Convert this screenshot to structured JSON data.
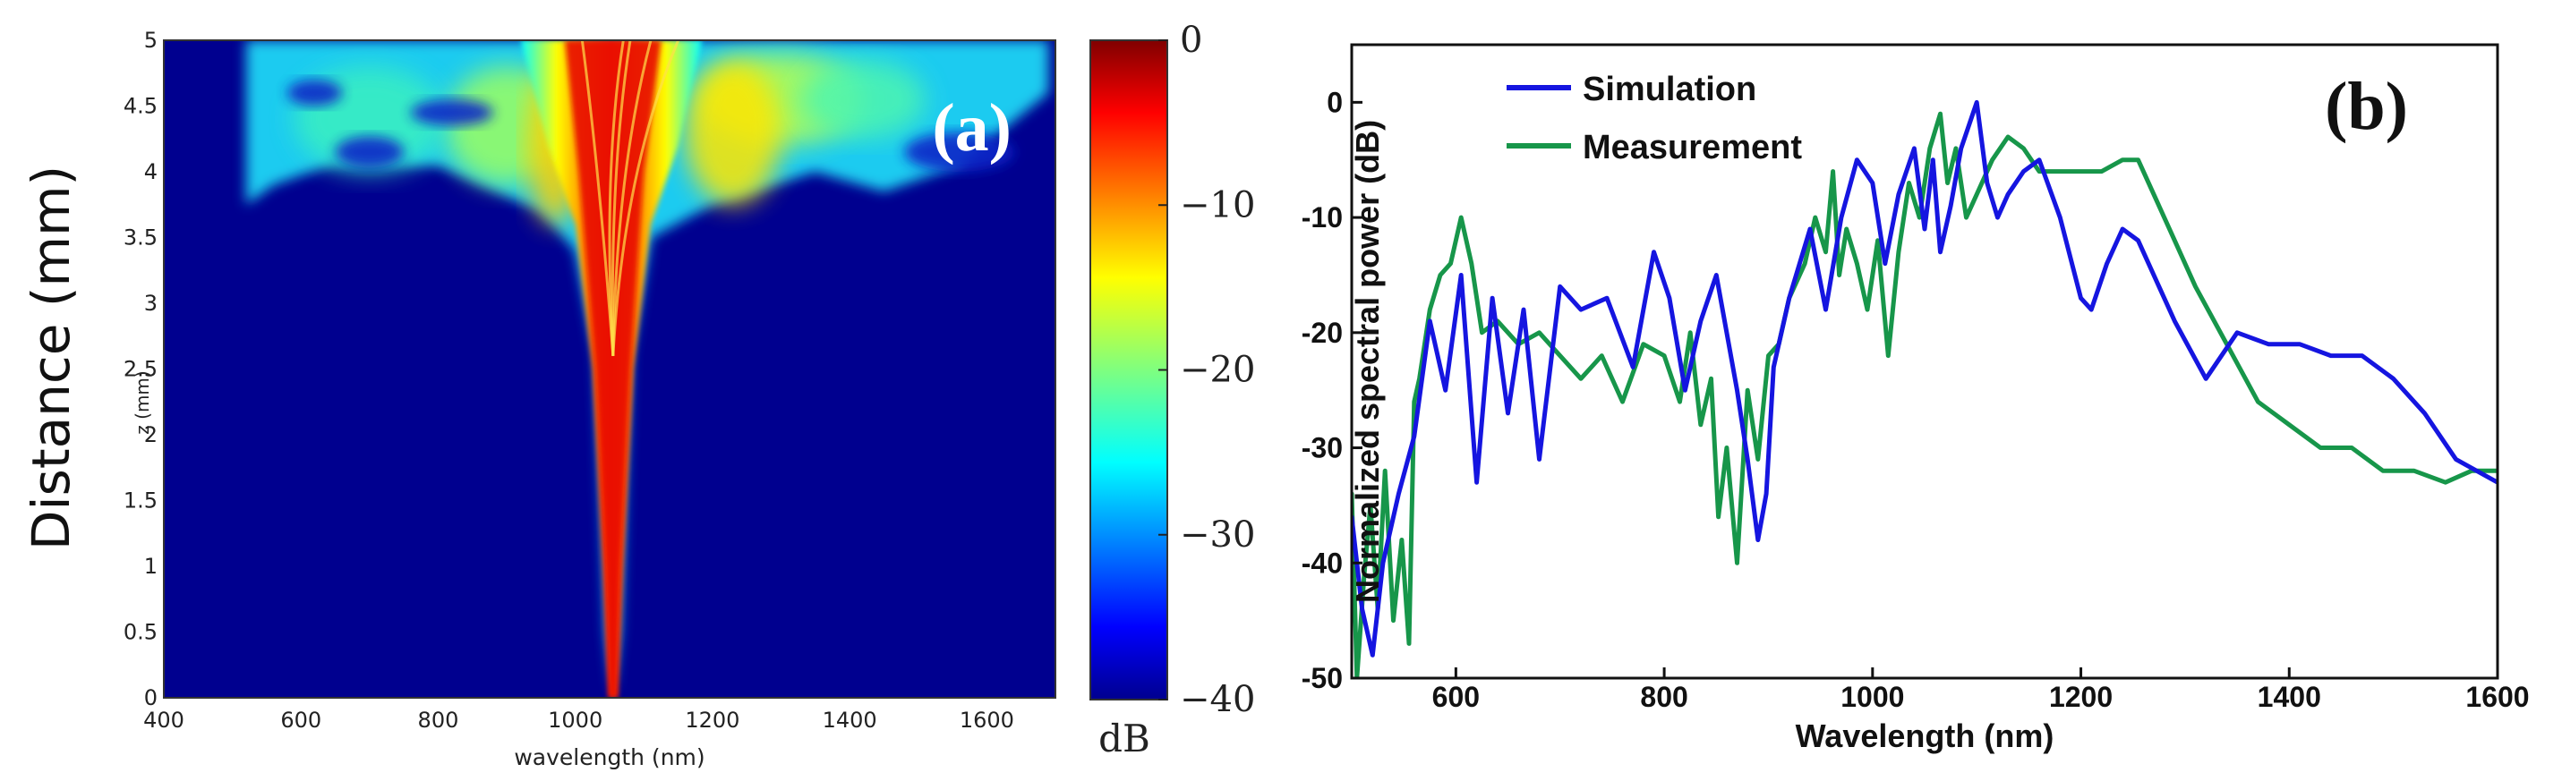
{
  "chart_data": [
    {
      "type": "heatmap",
      "panel_label": "(a)",
      "xlabel": "wavelength (nm)",
      "ylabel": "Distance (mm)",
      "ylabel_small": "z (mm)",
      "xlim": [
        400,
        1700
      ],
      "ylim": [
        0,
        5
      ],
      "x_ticks": [
        "400",
        "600",
        "800",
        "1000",
        "1200",
        "1400",
        "1600"
      ],
      "y_ticks": [
        "0",
        "0.5",
        "1",
        "1.5",
        "2",
        "2.5",
        "3",
        "3.5",
        "4",
        "4.5",
        "5"
      ],
      "colorbar": {
        "label": "dB",
        "range": [
          -40,
          0
        ],
        "ticks": [
          "0",
          "−10",
          "−20",
          "−30",
          "−40"
        ],
        "colormap": "jet"
      },
      "pump_center_nm": 1055
    },
    {
      "type": "line",
      "panel_label": "(b)",
      "xlabel": "Wavelength (nm)",
      "ylabel": "Normalized spectral power (dB)",
      "xlim": [
        500,
        1600
      ],
      "ylim": [
        -50,
        5
      ],
      "x_ticks": [
        "600",
        "800",
        "1000",
        "1200",
        "1400",
        "1600"
      ],
      "y_ticks": [
        "0",
        "-10",
        "-20",
        "-30",
        "-40",
        "-50"
      ],
      "series": [
        {
          "name": "Simulation",
          "color": "#1515e0",
          "x": [
            500,
            510,
            520,
            530,
            545,
            560,
            575,
            590,
            605,
            620,
            635,
            650,
            665,
            680,
            700,
            720,
            745,
            770,
            790,
            805,
            820,
            835,
            850,
            870,
            880,
            890,
            898,
            905,
            920,
            940,
            955,
            970,
            985,
            1000,
            1012,
            1025,
            1040,
            1050,
            1058,
            1065,
            1075,
            1085,
            1100,
            1110,
            1120,
            1130,
            1145,
            1160,
            1180,
            1200,
            1210,
            1225,
            1240,
            1255,
            1270,
            1290,
            1320,
            1350,
            1380,
            1410,
            1440,
            1470,
            1500,
            1530,
            1560,
            1600
          ],
          "y": [
            -36,
            -44,
            -48,
            -40,
            -34,
            -29,
            -19,
            -25,
            -15,
            -33,
            -17,
            -27,
            -18,
            -31,
            -16,
            -18,
            -17,
            -23,
            -13,
            -17,
            -25,
            -19,
            -15,
            -25,
            -31,
            -38,
            -34,
            -23,
            -17,
            -11,
            -18,
            -10,
            -5,
            -7,
            -14,
            -8,
            -4,
            -11,
            -5,
            -13,
            -9,
            -4,
            0,
            -7,
            -10,
            -8,
            -6,
            -5,
            -10,
            -17,
            -18,
            -14,
            -11,
            -12,
            -15,
            -19,
            -24,
            -20,
            -21,
            -21,
            -22,
            -22,
            -24,
            -27,
            -31,
            -33
          ]
        },
        {
          "name": "Measurement",
          "color": "#17964a",
          "x": [
            500,
            505,
            512,
            518,
            525,
            532,
            540,
            548,
            555,
            560,
            565,
            575,
            585,
            595,
            605,
            615,
            625,
            640,
            660,
            680,
            700,
            720,
            740,
            760,
            780,
            800,
            815,
            825,
            835,
            845,
            852,
            860,
            870,
            880,
            890,
            900,
            910,
            920,
            935,
            945,
            955,
            962,
            968,
            975,
            985,
            995,
            1005,
            1015,
            1025,
            1035,
            1045,
            1055,
            1065,
            1072,
            1080,
            1090,
            1100,
            1115,
            1130,
            1145,
            1160,
            1180,
            1200,
            1220,
            1240,
            1255,
            1270,
            1290,
            1310,
            1340,
            1370,
            1400,
            1430,
            1460,
            1490,
            1520,
            1550,
            1575,
            1600
          ],
          "y": [
            -34,
            -50,
            -41,
            -35,
            -44,
            -32,
            -45,
            -38,
            -47,
            -26,
            -24,
            -18,
            -15,
            -14,
            -10,
            -14,
            -20,
            -19,
            -21,
            -20,
            -22,
            -24,
            -22,
            -26,
            -21,
            -22,
            -26,
            -20,
            -28,
            -24,
            -36,
            -30,
            -40,
            -25,
            -31,
            -22,
            -21,
            -17,
            -14,
            -10,
            -13,
            -6,
            -15,
            -11,
            -14,
            -18,
            -12,
            -22,
            -13,
            -7,
            -10,
            -4,
            -1,
            -7,
            -4,
            -10,
            -8,
            -5,
            -3,
            -4,
            -6,
            -6,
            -6,
            -6,
            -5,
            -5,
            -8,
            -12,
            -16,
            -21,
            -26,
            -28,
            -30,
            -30,
            -32,
            -32,
            -33,
            -32,
            -32
          ]
        }
      ]
    }
  ]
}
